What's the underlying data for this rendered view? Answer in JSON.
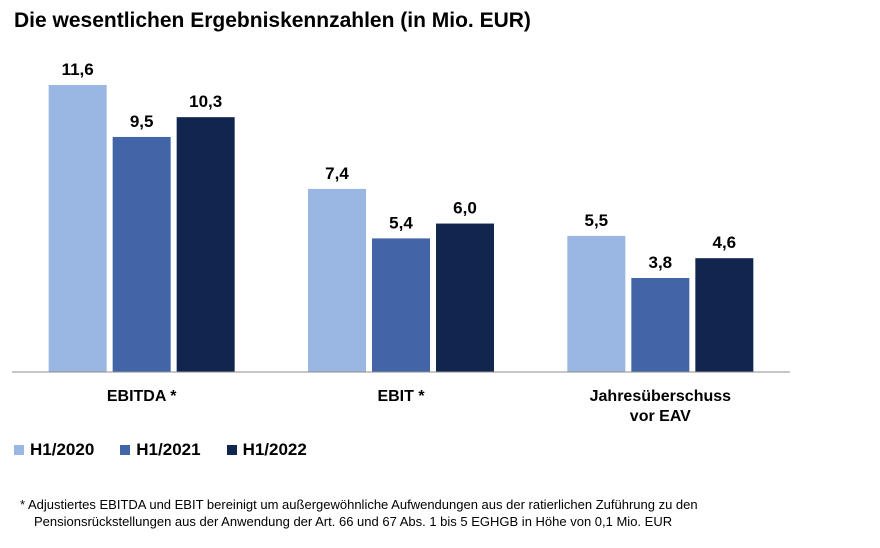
{
  "chart_data": {
    "type": "bar",
    "title": "Die wesentlichen Ergebniskennzahlen (in Mio. EUR)",
    "categories": [
      "EBITDA *",
      "EBIT *",
      "Jahresüberschuss vor EAV"
    ],
    "category_lines": [
      [
        "EBITDA *"
      ],
      [
        "EBIT *"
      ],
      [
        "Jahresüberschuss",
        "vor EAV"
      ]
    ],
    "series": [
      {
        "name": "H1/2020",
        "values": [
          11.6,
          7.4,
          5.5
        ],
        "labels": [
          "11,6",
          "7,4",
          "5,5"
        ],
        "color": "#9ab6e2"
      },
      {
        "name": "H1/2021",
        "values": [
          9.5,
          5.4,
          3.8
        ],
        "labels": [
          "9,5",
          "5,4",
          "3,8"
        ],
        "color": "#4265a8"
      },
      {
        "name": "H1/2022",
        "values": [
          10.3,
          6.0,
          4.6
        ],
        "labels": [
          "10,3",
          "6,0",
          "4,6"
        ],
        "color": "#10264f"
      }
    ],
    "ylim": [
      0,
      11.6
    ],
    "xlabel": "",
    "ylabel": "",
    "grid": false,
    "legend_position": "bottom-left"
  },
  "footnote": {
    "line1": "* Adjustiertes EBITDA und EBIT bereinigt um außergewöhnliche Aufwendungen aus der ratierlichen Zuführung zu den",
    "line2": "Pensionsrückstellungen aus der Anwendung der Art. 66 und 67 Abs. 1 bis 5 EGHGB in Höhe von 0,1 Mio. EUR"
  }
}
